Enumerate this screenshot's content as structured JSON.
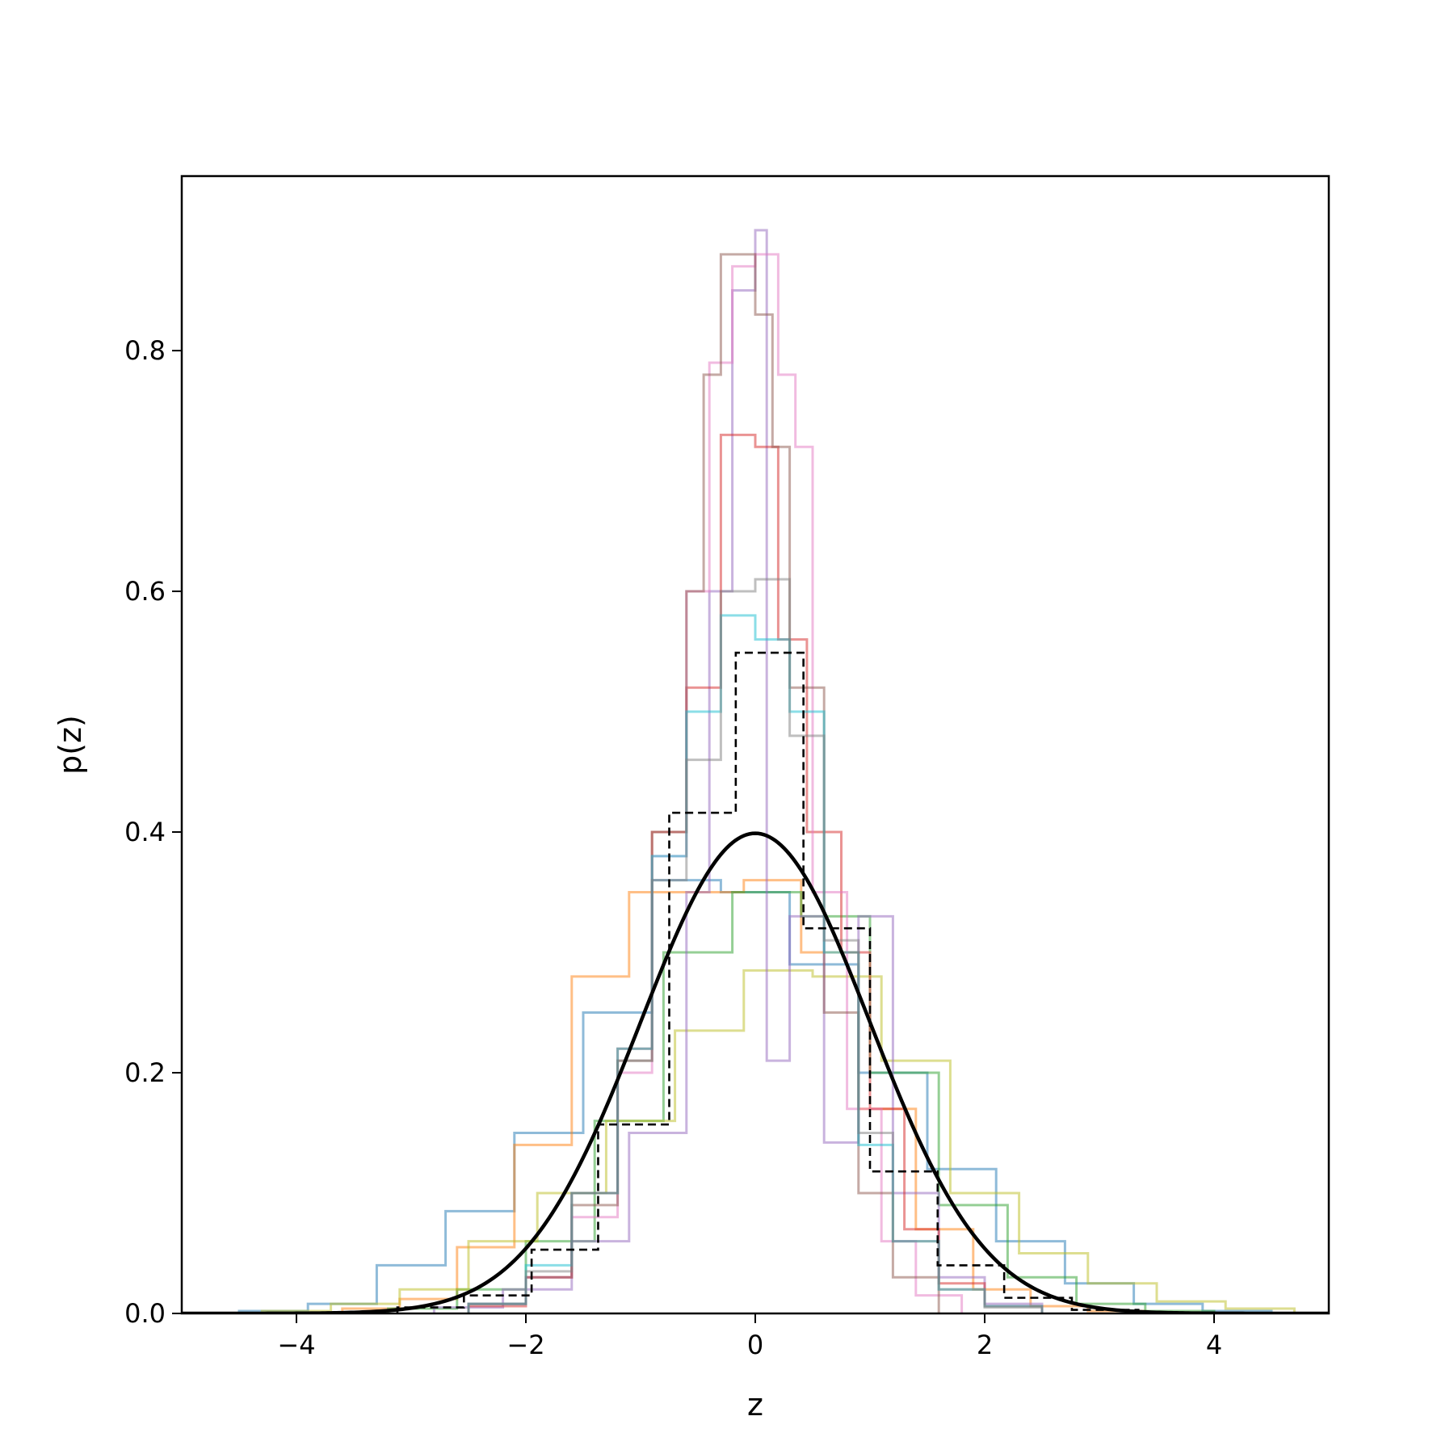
{
  "chart_data": {
    "type": "step-histogram",
    "xlabel": "z",
    "ylabel": "p(z)",
    "xlim": [
      -5,
      5
    ],
    "ylim": [
      0,
      0.945
    ],
    "grid": false,
    "x_ticks": [
      {
        "value": -4,
        "label": "−4"
      },
      {
        "value": -2,
        "label": "−2"
      },
      {
        "value": 0,
        "label": "0"
      },
      {
        "value": 2,
        "label": "2"
      },
      {
        "value": 4,
        "label": "4"
      }
    ],
    "y_ticks": [
      {
        "value": 0.0,
        "label": "0.0"
      },
      {
        "value": 0.2,
        "label": "0.2"
      },
      {
        "value": 0.4,
        "label": "0.4"
      },
      {
        "value": 0.6,
        "label": "0.6"
      },
      {
        "value": 0.8,
        "label": "0.8"
      }
    ],
    "reference_curve": {
      "type": "normal-pdf",
      "mean": 0,
      "std": 1,
      "color": "#000000",
      "style": "solid"
    },
    "reference_histogram": {
      "color": "#000000",
      "style": "dashed",
      "edges": [
        -3.12,
        -2.54,
        -1.95,
        -1.37,
        -0.75,
        -0.17,
        0.42,
        1.0,
        1.59,
        2.17,
        2.76,
        3.34
      ],
      "heights": [
        0.005,
        0.015,
        0.053,
        0.157,
        0.416,
        0.549,
        0.32,
        0.118,
        0.04,
        0.013,
        0.003
      ]
    },
    "series": [
      {
        "color": "#1f77b4",
        "edges": [
          -4.5,
          -3.9,
          -3.3,
          -2.7,
          -2.1,
          -1.5,
          -0.9,
          -0.3,
          0.3,
          0.9,
          1.5,
          2.1,
          2.7,
          3.3,
          3.9,
          4.5
        ],
        "heights": [
          0.002,
          0.008,
          0.04,
          0.085,
          0.15,
          0.25,
          0.36,
          0.35,
          0.29,
          0.2,
          0.12,
          0.06,
          0.025,
          0.008,
          0.002
        ]
      },
      {
        "color": "#ff7f0e",
        "edges": [
          -3.6,
          -3.1,
          -2.6,
          -2.1,
          -1.6,
          -1.1,
          -0.6,
          -0.1,
          0.4,
          0.9,
          1.4,
          1.9,
          2.4,
          2.9,
          3.4
        ],
        "heights": [
          0.004,
          0.012,
          0.055,
          0.14,
          0.28,
          0.35,
          0.35,
          0.36,
          0.3,
          0.17,
          0.07,
          0.02,
          0.006,
          0.002
        ]
      },
      {
        "color": "#2ca02c",
        "edges": [
          -3.2,
          -2.6,
          -2.0,
          -1.4,
          -0.8,
          -0.2,
          0.4,
          1.0,
          1.6,
          2.2,
          2.8,
          3.4,
          4.0
        ],
        "heights": [
          0.004,
          0.02,
          0.06,
          0.16,
          0.3,
          0.35,
          0.33,
          0.2,
          0.09,
          0.03,
          0.008,
          0.002
        ]
      },
      {
        "color": "#bcbd22",
        "edges": [
          -4.3,
          -3.7,
          -3.1,
          -2.5,
          -1.9,
          -1.3,
          -0.7,
          -0.1,
          0.5,
          1.1,
          1.7,
          2.3,
          2.9,
          3.5,
          4.1,
          4.7
        ],
        "heights": [
          0.002,
          0.008,
          0.02,
          0.06,
          0.1,
          0.16,
          0.235,
          0.285,
          0.28,
          0.21,
          0.1,
          0.05,
          0.025,
          0.01,
          0.004
        ]
      },
      {
        "color": "#9467bd",
        "edges": [
          -2.8,
          -2.2,
          -1.6,
          -1.1,
          -0.6,
          -0.4,
          -0.2,
          0.0,
          0.1,
          0.3,
          0.6,
          0.9,
          1.2,
          1.6,
          2.0,
          2.5
        ],
        "heights": [
          0.005,
          0.02,
          0.06,
          0.15,
          0.35,
          0.6,
          0.85,
          0.9,
          0.21,
          0.33,
          0.142,
          0.33,
          0.1,
          0.03,
          0.008
        ]
      },
      {
        "color": "#d62728",
        "edges": [
          -2.5,
          -2.0,
          -1.6,
          -1.2,
          -0.9,
          -0.6,
          -0.3,
          0.0,
          0.2,
          0.45,
          0.75,
          1.0,
          1.3,
          1.6,
          2.0,
          2.5
        ],
        "heights": [
          0.006,
          0.03,
          0.1,
          0.22,
          0.4,
          0.52,
          0.73,
          0.72,
          0.56,
          0.4,
          0.3,
          0.17,
          0.07,
          0.025,
          0.006
        ]
      },
      {
        "color": "#e377c2",
        "edges": [
          -2.5,
          -2.0,
          -1.6,
          -1.2,
          -0.9,
          -0.6,
          -0.4,
          -0.2,
          0.0,
          0.2,
          0.35,
          0.5,
          0.8,
          1.1,
          1.4,
          1.8
        ],
        "heights": [
          0.008,
          0.03,
          0.08,
          0.2,
          0.38,
          0.6,
          0.79,
          0.87,
          0.88,
          0.78,
          0.72,
          0.35,
          0.17,
          0.06,
          0.015
        ]
      },
      {
        "color": "#8c564b",
        "edges": [
          -2.5,
          -2.0,
          -1.6,
          -1.2,
          -0.9,
          -0.6,
          -0.45,
          -0.3,
          -0.15,
          0.0,
          0.15,
          0.3,
          0.6,
          0.9,
          1.2,
          1.6
        ],
        "heights": [
          0.008,
          0.03,
          0.09,
          0.21,
          0.4,
          0.6,
          0.78,
          0.88,
          0.88,
          0.83,
          0.72,
          0.52,
          0.25,
          0.1,
          0.03
        ]
      },
      {
        "color": "#17becf",
        "edges": [
          -2.5,
          -2.0,
          -1.6,
          -1.2,
          -0.9,
          -0.6,
          -0.3,
          0.0,
          0.3,
          0.6,
          0.9,
          1.2,
          1.6,
          2.0,
          2.5
        ],
        "heights": [
          0.008,
          0.04,
          0.1,
          0.22,
          0.38,
          0.5,
          0.58,
          0.56,
          0.5,
          0.3,
          0.14,
          0.06,
          0.02,
          0.006
        ]
      },
      {
        "color": "#7f7f7f",
        "edges": [
          -2.5,
          -2.0,
          -1.6,
          -1.2,
          -0.9,
          -0.6,
          -0.3,
          0.0,
          0.3,
          0.6,
          0.9,
          1.2,
          1.6,
          2.0,
          2.5
        ],
        "heights": [
          0.008,
          0.035,
          0.1,
          0.21,
          0.36,
          0.46,
          0.6,
          0.61,
          0.48,
          0.31,
          0.15,
          0.06,
          0.02,
          0.005
        ]
      }
    ]
  }
}
